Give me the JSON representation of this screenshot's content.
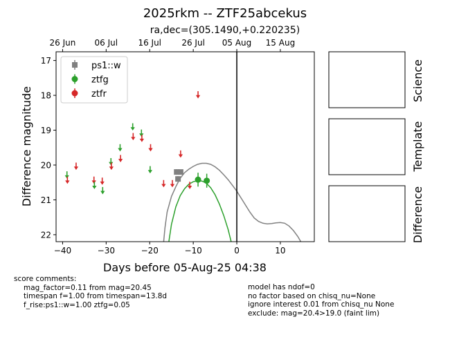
{
  "title": "2025rkm -- ZTF25abcekus",
  "subtitle": "ra,dec=(305.1490,+0.220235)",
  "chart_data": {
    "type": "scatter",
    "xlabel": "Days before 05-Aug-25 04:38",
    "ylabel": "Difference magnitude",
    "xlim": [
      -41.5,
      17.8
    ],
    "ylim": [
      22.2,
      16.75
    ],
    "x_ticks": [
      -40,
      -30,
      -20,
      -10,
      0,
      10
    ],
    "y_ticks": [
      17,
      18,
      19,
      20,
      21,
      22
    ],
    "top_axis_ticks": [
      {
        "x": -40,
        "label": "26 Jun"
      },
      {
        "x": -30,
        "label": "06 Jul"
      },
      {
        "x": -20,
        "label": "16 Jul"
      },
      {
        "x": -10,
        "label": "26 Jul"
      },
      {
        "x": 0,
        "label": "05 Aug"
      },
      {
        "x": 10,
        "label": "15 Aug"
      }
    ],
    "reference_line_x": 0,
    "legend": {
      "placement": "top-left",
      "entries": [
        {
          "label": "ps1::w",
          "color": "#808080",
          "marker": "square"
        },
        {
          "label": "ztfg",
          "color": "#2ca02c",
          "marker": "circle"
        },
        {
          "label": "ztfr",
          "color": "#d62728",
          "marker": "circle"
        }
      ]
    },
    "series": [
      {
        "name": "ps1::w",
        "color": "#808080",
        "marker": "square",
        "points": [
          {
            "x": -13.8,
            "y": 20.2,
            "err": 0.08
          },
          {
            "x": -13.5,
            "y": 20.4,
            "err": 0.08
          },
          {
            "x": -12.9,
            "y": 20.2,
            "err": 0.06
          }
        ]
      },
      {
        "name": "ztfg",
        "color": "#2ca02c",
        "marker": "circle",
        "points": [
          {
            "x": -8.9,
            "y": 20.42,
            "err": 0.2
          },
          {
            "x": -6.9,
            "y": 20.45,
            "err": 0.2
          }
        ]
      },
      {
        "name": "ztfr",
        "color": "#d62728",
        "marker": "circle",
        "points": []
      }
    ],
    "upper_limits": [
      {
        "band": "ztfg",
        "x": -39.0,
        "y": 20.3
      },
      {
        "band": "ztfr",
        "x": -38.9,
        "y": 20.45
      },
      {
        "band": "ztfr",
        "x": -36.9,
        "y": 20.05
      },
      {
        "band": "ztfr",
        "x": -32.8,
        "y": 20.45
      },
      {
        "band": "ztfg",
        "x": -32.7,
        "y": 20.6
      },
      {
        "band": "ztfr",
        "x": -30.9,
        "y": 20.48
      },
      {
        "band": "ztfg",
        "x": -30.8,
        "y": 20.75
      },
      {
        "band": "ztfg",
        "x": -28.9,
        "y": 19.92
      },
      {
        "band": "ztfr",
        "x": -28.8,
        "y": 20.05
      },
      {
        "band": "ztfg",
        "x": -26.8,
        "y": 19.52
      },
      {
        "band": "ztfr",
        "x": -26.7,
        "y": 19.83
      },
      {
        "band": "ztfg",
        "x": -23.9,
        "y": 18.92
      },
      {
        "band": "ztfr",
        "x": -23.8,
        "y": 19.2
      },
      {
        "band": "ztfg",
        "x": -21.9,
        "y": 19.1
      },
      {
        "band": "ztfr",
        "x": -21.8,
        "y": 19.25
      },
      {
        "band": "ztfr",
        "x": -19.8,
        "y": 19.52
      },
      {
        "band": "ztfg",
        "x": -19.9,
        "y": 20.15
      },
      {
        "band": "ztfr",
        "x": -16.8,
        "y": 20.55
      },
      {
        "band": "ztfr",
        "x": -14.8,
        "y": 20.55
      },
      {
        "band": "ztfr",
        "x": -12.9,
        "y": 19.7
      },
      {
        "band": "ztfr",
        "x": -10.8,
        "y": 20.6
      },
      {
        "band": "ztfr",
        "x": -8.9,
        "y": 18.0
      }
    ],
    "model_curves": [
      {
        "band": "ps1::w",
        "color": "#808080",
        "points": [
          [
            -16.8,
            22.2
          ],
          [
            -16.5,
            21.8
          ],
          [
            -16.0,
            21.35
          ],
          [
            -15.0,
            20.9
          ],
          [
            -14.0,
            20.62
          ],
          [
            -13.0,
            20.38
          ],
          [
            -12.0,
            20.22
          ],
          [
            -11.0,
            20.12
          ],
          [
            -10.0,
            20.04
          ],
          [
            -9.0,
            19.98
          ],
          [
            -8.0,
            19.95
          ],
          [
            -7.0,
            19.95
          ],
          [
            -6.0,
            19.98
          ],
          [
            -5.0,
            20.05
          ],
          [
            -4.0,
            20.15
          ],
          [
            -3.0,
            20.28
          ],
          [
            -2.0,
            20.42
          ],
          [
            -1.0,
            20.58
          ],
          [
            0.0,
            20.75
          ],
          [
            1.0,
            20.95
          ],
          [
            2.0,
            21.15
          ],
          [
            3.0,
            21.35
          ],
          [
            4.0,
            21.52
          ],
          [
            5.0,
            21.62
          ],
          [
            6.0,
            21.67
          ],
          [
            7.0,
            21.69
          ],
          [
            8.0,
            21.68
          ],
          [
            9.0,
            21.66
          ],
          [
            10.0,
            21.65
          ],
          [
            11.0,
            21.67
          ],
          [
            12.0,
            21.75
          ],
          [
            13.0,
            21.88
          ],
          [
            14.0,
            22.05
          ],
          [
            14.7,
            22.2
          ]
        ]
      },
      {
        "band": "ztfg",
        "color": "#2ca02c",
        "points": [
          [
            -15.6,
            22.2
          ],
          [
            -15.0,
            21.7
          ],
          [
            -14.0,
            21.2
          ],
          [
            -13.0,
            20.88
          ],
          [
            -12.0,
            20.68
          ],
          [
            -11.0,
            20.55
          ],
          [
            -10.0,
            20.48
          ],
          [
            -9.0,
            20.45
          ],
          [
            -8.0,
            20.46
          ],
          [
            -7.0,
            20.52
          ],
          [
            -6.0,
            20.65
          ],
          [
            -5.0,
            20.85
          ],
          [
            -4.0,
            21.12
          ],
          [
            -3.0,
            21.45
          ],
          [
            -2.0,
            21.85
          ],
          [
            -1.3,
            22.2
          ]
        ]
      }
    ]
  },
  "side_panels": [
    {
      "label": "Science"
    },
    {
      "label": "Template"
    },
    {
      "label": "Difference"
    }
  ],
  "comments_left": {
    "header": "score comments:",
    "lines": [
      "mag_factor=0.11 from mag=20.45",
      "timespan f=1.00 from timespan=13.8d",
      "f_rise:ps1::w=1.00 ztfg=0.05"
    ]
  },
  "comments_right": {
    "lines": [
      "model has ndof=0",
      "no factor based on chisq_nu=None",
      "ignore interest 0.01 from chisq_nu None",
      "exclude: mag=20.4>19.0 (faint lim)"
    ]
  }
}
